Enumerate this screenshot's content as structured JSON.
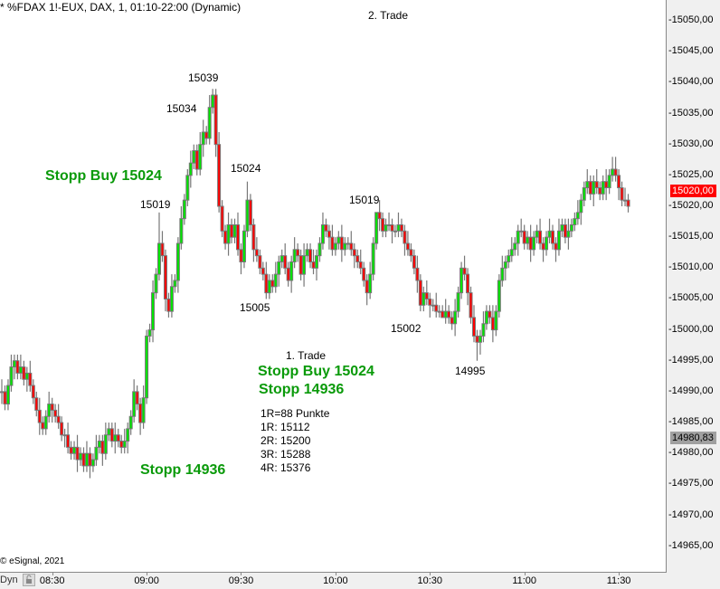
{
  "header": {
    "title": "* %FDAX 1!-EUX, DAX, 1, 01:10-22:00 (Dynamic)"
  },
  "copyright": "© eSignal, 2021",
  "footer": {
    "dyn_label": "Dyn"
  },
  "colors": {
    "up": "#00e600",
    "down": "#ff0000",
    "outline": "#777777",
    "last_price": "#ff0000",
    "marker_price": "#a0a0a0",
    "annotation_green": "#0a9a0a"
  },
  "annotations": {
    "trade2": "2. Trade",
    "high_15039": "15039",
    "level_15034": "15034",
    "stopp_buy_left": "Stopp Buy 15024",
    "level_15024": "15024",
    "level_15019_left": "15019",
    "level_15019_mid": "15019",
    "level_15005": "15005",
    "level_15002": "15002",
    "level_14995": "14995",
    "trade1": "1. Trade",
    "stopp_buy_mid": "Stopp Buy 15024",
    "stopp_mid": "Stopp 14936",
    "stopp_left": "Stopp 14936",
    "r_lines": [
      "1R=88 Punkte",
      "1R: 15112",
      "2R: 15200",
      "3R: 15288",
      "4R: 15376"
    ]
  },
  "chart_data": {
    "type": "candlestick",
    "symbol": "%FDAX 1!-EUX",
    "interval_min": 1,
    "first_bar_time": "08:14",
    "ylim": [
      14960,
      15053
    ],
    "y_ticks": [
      "15050,00",
      "15045,00",
      "15040,00",
      "15035,00",
      "15030,00",
      "15025,00",
      "15020,00",
      "15015,00",
      "15010,00",
      "15005,00",
      "15000,00",
      "14995,00",
      "14990,00",
      "14985,00",
      "14980,00",
      "14975,00",
      "14970,00",
      "14965,00"
    ],
    "y_tick_values": [
      15050,
      15045,
      15040,
      15035,
      15030,
      15025,
      15020,
      15015,
      15010,
      15005,
      15000,
      14995,
      14990,
      14985,
      14980,
      14975,
      14970,
      14965
    ],
    "x_ticks": [
      "08:30",
      "09:00",
      "09:30",
      "10:00",
      "10:30",
      "11:00",
      "11:30"
    ],
    "x_tick_minutes_from_first": [
      16,
      46,
      76,
      106,
      136,
      166,
      196
    ],
    "last_price": {
      "value": 15020,
      "label": "15020,00"
    },
    "marker_price": {
      "value": 14980.83,
      "label": "14980,83"
    },
    "closes": [
      14990,
      14988,
      14991,
      14994,
      14995,
      14993,
      14994,
      14992,
      14993,
      14991,
      14989,
      14987,
      14985,
      14984,
      14986,
      14988,
      14987,
      14986,
      14985,
      14983,
      14983,
      14981,
      14980,
      14981,
      14979,
      14980,
      14978,
      14980,
      14978,
      14979,
      14981,
      14982,
      14980,
      14983,
      14984,
      14982,
      14983,
      14982,
      14981,
      14982,
      14984,
      14986,
      14990,
      14988,
      14985,
      14989,
      14999,
      15000,
      15006,
      15009,
      15014,
      15012,
      15005,
      15003,
      15007,
      15008,
      15014,
      15018,
      15021,
      15025,
      15027,
      15029,
      15026,
      15030,
      15032,
      15031,
      15036,
      15038,
      15030,
      15020,
      15016,
      15014,
      15017,
      15015,
      15017,
      15013,
      15011,
      15016,
      15021,
      15017,
      15013,
      15012,
      15010,
      15009,
      15006,
      15008,
      15007,
      15009,
      15011,
      15012,
      15010,
      15008,
      15011,
      15013,
      15012,
      15009,
      15012,
      15013,
      15011,
      15010,
      15012,
      15014,
      15017,
      15016,
      15015,
      15013,
      15014,
      15015,
      15013,
      15014,
      15014,
      15013,
      15012,
      15011,
      15010,
      15008,
      15006,
      15009,
      15014,
      15019,
      15018,
      15016,
      15017,
      15017,
      15016,
      15016,
      15017,
      15016,
      15014,
      15013,
      15012,
      15010,
      15008,
      15004,
      15006,
      15005,
      15004,
      15004,
      15003,
      15003,
      15002,
      15003,
      15002,
      15001,
      15003,
      15006,
      15010,
      15009,
      15006,
      15002,
      14999,
      14998,
      14999,
      15001,
      15003,
      15002,
      15000,
      15003,
      15008,
      15010,
      15011,
      15012,
      15013,
      15014,
      15016,
      15016,
      15014,
      15015,
      15013,
      15015,
      15016,
      15014,
      15013,
      15015,
      15016,
      15014,
      15013,
      15016,
      15017,
      15015,
      15016,
      15017,
      15018,
      15019,
      15021,
      15023,
      15024,
      15022,
      15024,
      15023,
      15022,
      15024,
      15023,
      15025,
      15026,
      15025,
      15023,
      15021,
      15021,
      15020
    ],
    "extremes": [
      {
        "bar": 50,
        "high": 15019
      },
      {
        "bar": 67,
        "high": 15039
      },
      {
        "bar": 64,
        "high": 15034
      },
      {
        "bar": 78,
        "high": 15024
      },
      {
        "bar": 84,
        "low": 15005
      },
      {
        "bar": 119,
        "high": 15019
      },
      {
        "bar": 140,
        "low": 15002
      },
      {
        "bar": 151,
        "low": 14995
      },
      {
        "bar": 194,
        "high": 15028
      }
    ]
  }
}
